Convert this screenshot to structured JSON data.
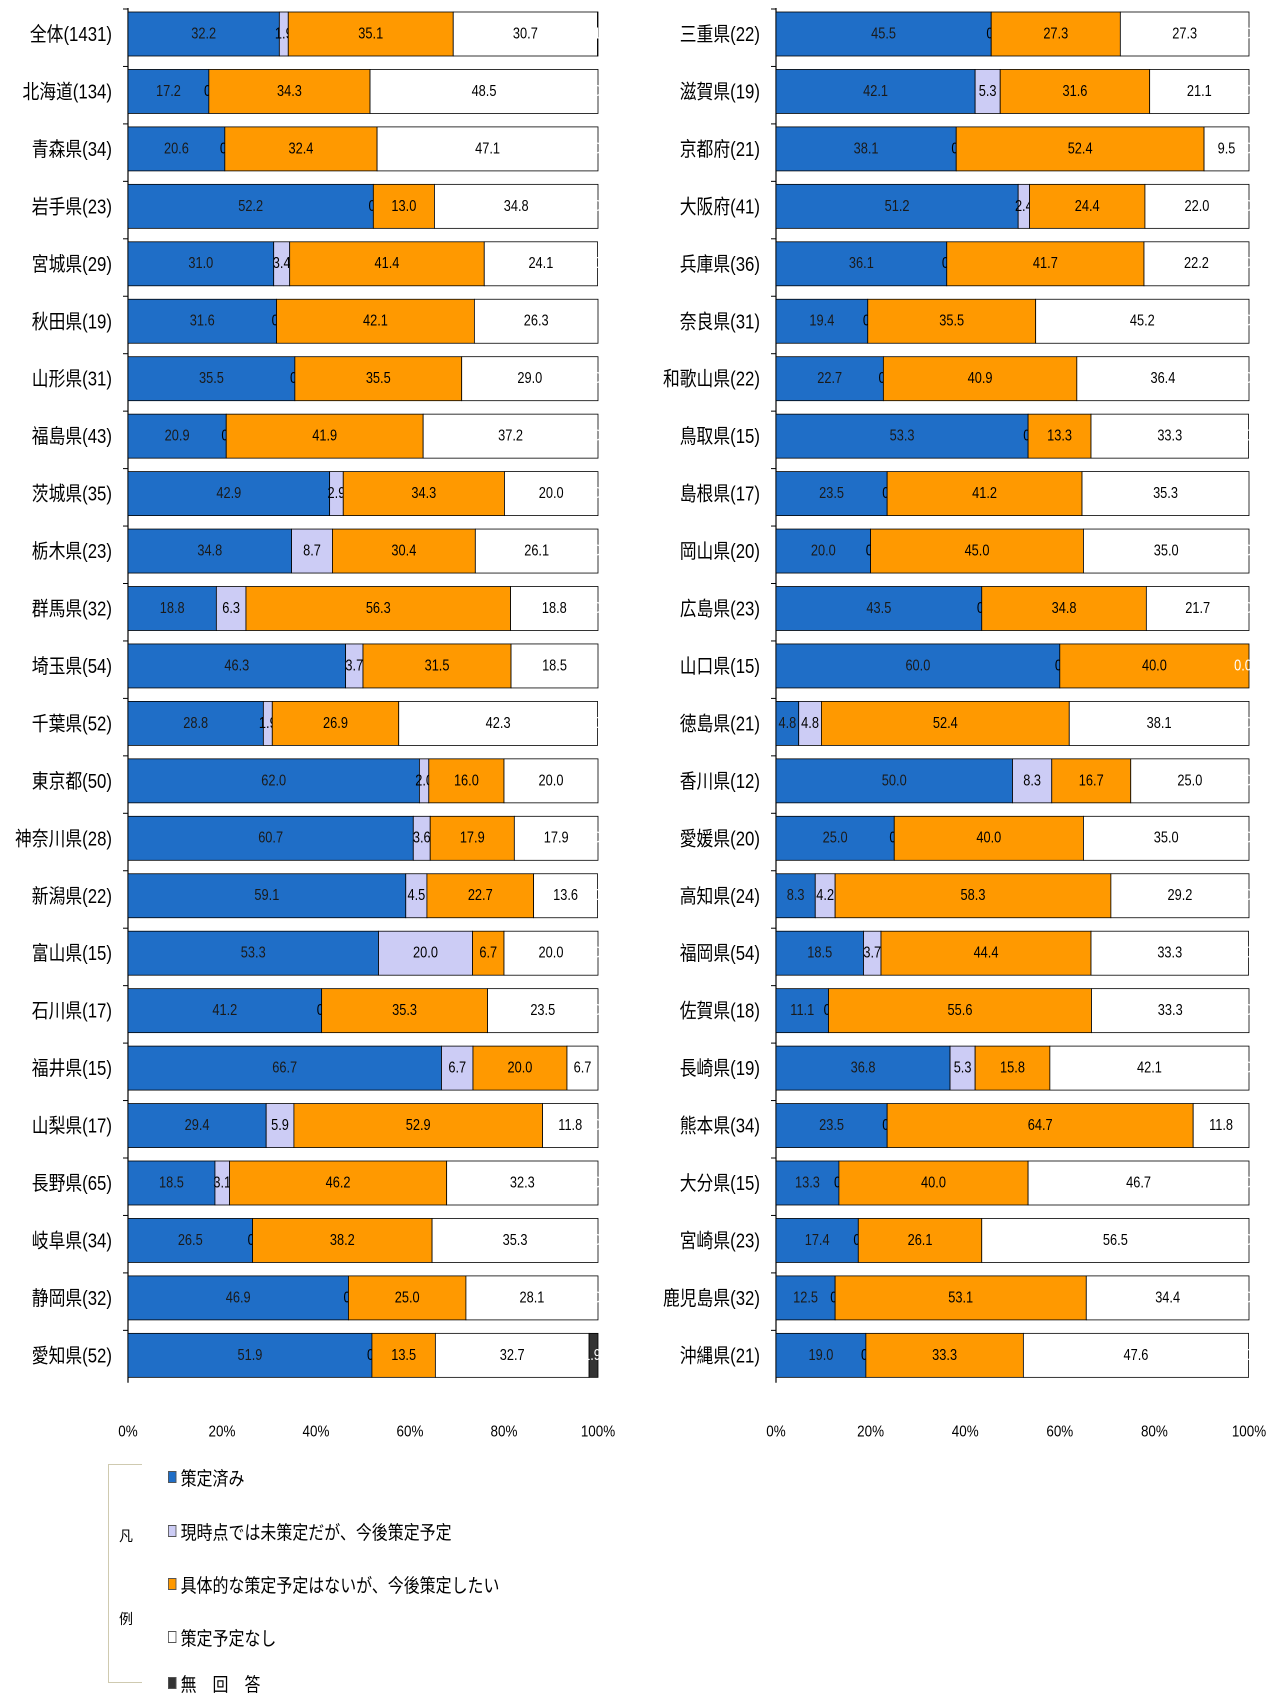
{
  "chart_data": {
    "type": "bar",
    "orientation": "horizontal",
    "stacked": "percent",
    "series": [
      {
        "name": "策定済み",
        "color": "#1f6ec7"
      },
      {
        "name": "現時点では未策定だが、今後策定予定",
        "color": "#ccccf5"
      },
      {
        "name": "具体的な策定予定はないが、今後策定したい",
        "color": "#ff9900"
      },
      {
        "name": "策定予定なし",
        "color": "#ffffff"
      },
      {
        "name": "無　回　答",
        "color": "#333333"
      }
    ],
    "xlim": [
      0,
      100
    ],
    "x_ticks": [
      "0%",
      "20%",
      "40%",
      "60%",
      "80%",
      "100%"
    ],
    "panels": [
      {
        "rows": [
          {
            "label": "全体(1431)",
            "values": [
              32.2,
              1.9,
              35.1,
              30.7,
              0.1
            ]
          },
          {
            "label": "北海道(134)",
            "values": [
              17.2,
              0.0,
              34.3,
              48.5,
              0.0
            ]
          },
          {
            "label": "青森県(34)",
            "values": [
              20.6,
              0.0,
              32.4,
              47.1,
              0.0
            ]
          },
          {
            "label": "岩手県(23)",
            "values": [
              52.2,
              0.0,
              13.0,
              34.8,
              0.0
            ]
          },
          {
            "label": "宮城県(29)",
            "values": [
              31.0,
              3.4,
              41.4,
              24.1,
              0.0
            ]
          },
          {
            "label": "秋田県(19)",
            "values": [
              31.6,
              0.0,
              42.1,
              26.3,
              null
            ]
          },
          {
            "label": "山形県(31)",
            "values": [
              35.5,
              0.0,
              35.5,
              29.0,
              0.0
            ]
          },
          {
            "label": "福島県(43)",
            "values": [
              20.9,
              0.0,
              41.9,
              37.2,
              0.0
            ]
          },
          {
            "label": "茨城県(35)",
            "values": [
              42.9,
              2.9,
              34.3,
              20.0,
              0.0
            ]
          },
          {
            "label": "栃木県(23)",
            "values": [
              34.8,
              8.7,
              30.4,
              26.1,
              0.0
            ]
          },
          {
            "label": "群馬県(32)",
            "values": [
              18.8,
              6.3,
              56.3,
              18.8,
              0.0
            ]
          },
          {
            "label": "埼玉県(54)",
            "values": [
              46.3,
              3.7,
              31.5,
              18.5,
              null
            ]
          },
          {
            "label": "千葉県(52)",
            "values": [
              28.8,
              1.9,
              26.9,
              42.3,
              0.0
            ]
          },
          {
            "label": "東京都(50)",
            "values": [
              62.0,
              2.0,
              16.0,
              20.0,
              null
            ]
          },
          {
            "label": "神奈川県(28)",
            "values": [
              60.7,
              3.6,
              17.9,
              17.9,
              0.0
            ]
          },
          {
            "label": "新潟県(22)",
            "values": [
              59.1,
              4.5,
              22.7,
              13.6,
              0.0
            ]
          },
          {
            "label": "富山県(15)",
            "values": [
              53.3,
              20.0,
              6.7,
              20.0,
              0.0
            ]
          },
          {
            "label": "石川県(17)",
            "values": [
              41.2,
              0.0,
              35.3,
              23.5,
              0.0
            ]
          },
          {
            "label": "福井県(15)",
            "values": [
              66.7,
              6.7,
              20.0,
              6.7,
              null
            ]
          },
          {
            "label": "山梨県(17)",
            "values": [
              29.4,
              5.9,
              52.9,
              11.8,
              0.0
            ]
          },
          {
            "label": "長野県(65)",
            "values": [
              18.5,
              3.1,
              46.2,
              32.3,
              0.0
            ]
          },
          {
            "label": "岐阜県(34)",
            "values": [
              26.5,
              0.0,
              38.2,
              35.3,
              0.0
            ]
          },
          {
            "label": "静岡県(32)",
            "values": [
              46.9,
              0.0,
              25.0,
              28.1,
              0.0
            ]
          },
          {
            "label": "愛知県(52)",
            "values": [
              51.9,
              0.0,
              13.5,
              32.7,
              1.9
            ]
          }
        ]
      },
      {
        "rows": [
          {
            "label": "三重県(22)",
            "values": [
              45.5,
              0.0,
              27.3,
              27.3,
              0.0
            ]
          },
          {
            "label": "滋賀県(19)",
            "values": [
              42.1,
              5.3,
              31.6,
              21.1,
              0.0
            ]
          },
          {
            "label": "京都府(21)",
            "values": [
              38.1,
              0.0,
              52.4,
              9.5,
              0.0
            ]
          },
          {
            "label": "大阪府(41)",
            "values": [
              51.2,
              2.4,
              24.4,
              22.0,
              0.0
            ]
          },
          {
            "label": "兵庫県(36)",
            "values": [
              36.1,
              0.0,
              41.7,
              22.2,
              0.0
            ]
          },
          {
            "label": "奈良県(31)",
            "values": [
              19.4,
              0.0,
              35.5,
              45.2,
              0.0
            ]
          },
          {
            "label": "和歌山県(22)",
            "values": [
              22.7,
              0.0,
              40.9,
              36.4,
              0.0
            ]
          },
          {
            "label": "鳥取県(15)",
            "values": [
              53.3,
              0.0,
              13.3,
              33.3,
              0.0
            ]
          },
          {
            "label": "島根県(17)",
            "values": [
              23.5,
              0.0,
              41.2,
              35.3,
              null
            ]
          },
          {
            "label": "岡山県(20)",
            "values": [
              20.0,
              0.0,
              45.0,
              35.0,
              0.0
            ]
          },
          {
            "label": "広島県(23)",
            "values": [
              43.5,
              0.0,
              34.8,
              21.7,
              0.0
            ]
          },
          {
            "label": "山口県(15)",
            "values": [
              60.0,
              0.0,
              40.0,
              null,
              0.0
            ]
          },
          {
            "label": "徳島県(21)",
            "values": [
              4.8,
              4.8,
              52.4,
              38.1,
              0.0
            ]
          },
          {
            "label": "香川県(12)",
            "values": [
              50.0,
              8.3,
              16.7,
              25.0,
              0.0
            ]
          },
          {
            "label": "愛媛県(20)",
            "values": [
              25.0,
              0.0,
              40.0,
              35.0,
              0.0
            ]
          },
          {
            "label": "高知県(24)",
            "values": [
              8.3,
              4.2,
              58.3,
              29.2,
              0.0
            ]
          },
          {
            "label": "福岡県(54)",
            "values": [
              18.5,
              3.7,
              44.4,
              33.3,
              0.0
            ]
          },
          {
            "label": "佐賀県(18)",
            "values": [
              11.1,
              0.0,
              55.6,
              33.3,
              0.0
            ]
          },
          {
            "label": "長崎県(19)",
            "values": [
              36.8,
              5.3,
              15.8,
              42.1,
              0.0
            ]
          },
          {
            "label": "熊本県(34)",
            "values": [
              23.5,
              0.0,
              64.7,
              11.8,
              null
            ]
          },
          {
            "label": "大分県(15)",
            "values": [
              13.3,
              0.0,
              40.0,
              46.7,
              0.0
            ]
          },
          {
            "label": "宮崎県(23)",
            "values": [
              17.4,
              0.0,
              26.1,
              56.5,
              0.0
            ]
          },
          {
            "label": "鹿児島県(32)",
            "values": [
              12.5,
              0.0,
              53.1,
              34.4,
              0.0
            ]
          },
          {
            "label": "沖縄県(21)",
            "values": [
              19.0,
              0.0,
              33.3,
              47.6,
              0.0
            ]
          }
        ]
      }
    ],
    "grid": false,
    "legend": {
      "position": "bottom-left",
      "title_chars": [
        "凡",
        "例"
      ]
    }
  }
}
